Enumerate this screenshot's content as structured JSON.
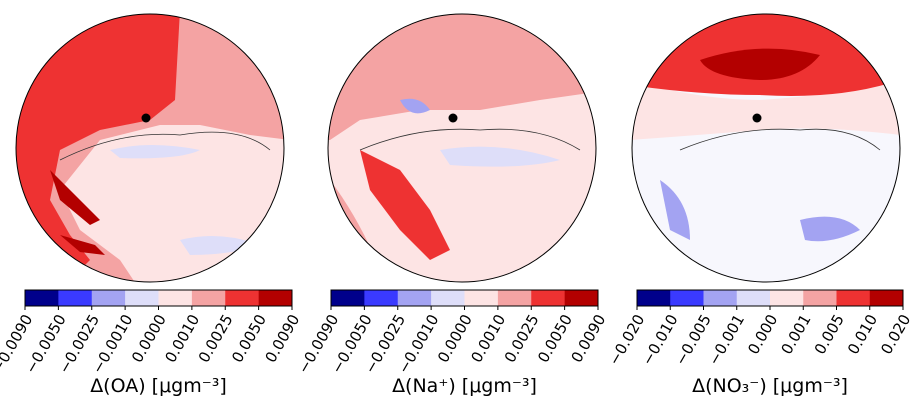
{
  "panels": [
    {
      "label": "Δ(OA) [μgm⁻³]",
      "colorbar": {
        "colors": [
          "#00008b",
          "#3a3aff",
          "#a3a3f2",
          "#dedef9",
          "#fde4e4",
          "#f4a3a3",
          "#ee3232",
          "#b30000"
        ],
        "ticks": [
          {
            "value": -0.009,
            "label": "−0.0090"
          },
          {
            "value": -0.005,
            "label": "−0.0050"
          },
          {
            "value": -0.0025,
            "label": "−0.0025"
          },
          {
            "value": -0.001,
            "label": "−0.0010"
          },
          {
            "value": 0,
            "label": "0.0000"
          },
          {
            "value": 0.001,
            "label": "0.0010"
          },
          {
            "value": 0.0025,
            "label": "0.0025"
          },
          {
            "value": 0.005,
            "label": "0.0050"
          },
          {
            "value": 0.009,
            "label": "0.0090"
          }
        ]
      }
    },
    {
      "label": "Δ(Na⁺) [μgm⁻³]",
      "colorbar": {
        "colors": [
          "#00008b",
          "#3a3aff",
          "#a3a3f2",
          "#dedef9",
          "#fde4e4",
          "#f4a3a3",
          "#ee3232",
          "#b30000"
        ],
        "ticks": [
          {
            "value": -0.009,
            "label": "−0.0090"
          },
          {
            "value": -0.005,
            "label": "−0.0050"
          },
          {
            "value": -0.0025,
            "label": "−0.0025"
          },
          {
            "value": -0.001,
            "label": "−0.0010"
          },
          {
            "value": 0,
            "label": "0.0000"
          },
          {
            "value": 0.001,
            "label": "0.0010"
          },
          {
            "value": 0.0025,
            "label": "0.0025"
          },
          {
            "value": 0.005,
            "label": "0.0050"
          },
          {
            "value": 0.009,
            "label": "0.0090"
          }
        ]
      }
    },
    {
      "label": "Δ(NO₃⁻) [μgm⁻³]",
      "colorbar": {
        "colors": [
          "#00008b",
          "#3a3aff",
          "#a3a3f2",
          "#dedef9",
          "#fde4e4",
          "#f4a3a3",
          "#ee3232",
          "#b30000"
        ],
        "ticks": [
          {
            "value": -0.02,
            "label": "−0.020"
          },
          {
            "value": -0.01,
            "label": "−0.010"
          },
          {
            "value": -0.005,
            "label": "−0.005"
          },
          {
            "value": -0.001,
            "label": "−0.001"
          },
          {
            "value": 0,
            "label": "0.000"
          },
          {
            "value": 0.001,
            "label": "0.001"
          },
          {
            "value": 0.005,
            "label": "0.005"
          },
          {
            "value": 0.01,
            "label": "0.010"
          },
          {
            "value": 0.02,
            "label": "0.020"
          }
        ]
      }
    }
  ]
}
